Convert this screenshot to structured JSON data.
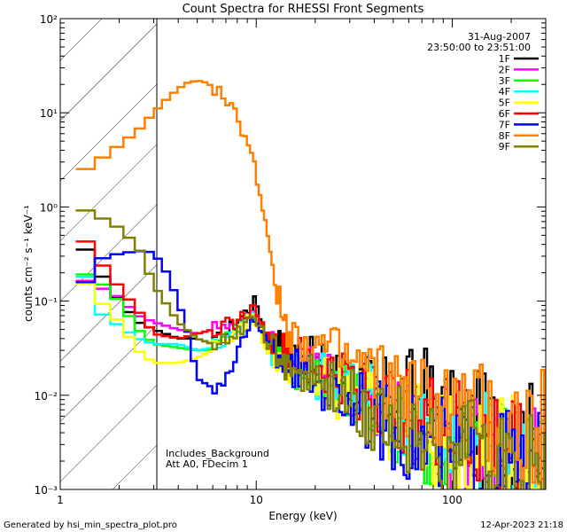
{
  "footer": {
    "generated_by": "Generated by hsi_min_spectra_plot.pro",
    "timestamp": "12-Apr-2023 21:18"
  },
  "annotations": {
    "date": "31-Aug-2007",
    "time_range": "23:50:00 to 23:51:00",
    "background_note": "Includes_Background",
    "attenuator_note": "Att A0, FDecim 1"
  },
  "chart_data": {
    "type": "line",
    "title": "Count Spectra for RHESSI Front Segments",
    "xlabel": "Energy (keV)",
    "ylabel": "counts cm⁻² s⁻¹ keV⁻¹",
    "x_scale": "log",
    "y_scale": "log",
    "xlim": [
      1,
      300
    ],
    "ylim": [
      0.001,
      100
    ],
    "x_ticks": [
      {
        "value": 1,
        "label": "1"
      },
      {
        "value": 10,
        "label": "10"
      },
      {
        "value": 100,
        "label": "100"
      }
    ],
    "y_ticks": [
      {
        "value": 0.001,
        "label": "10⁻³"
      },
      {
        "value": 0.01,
        "label": "10⁻²"
      },
      {
        "value": 0.1,
        "label": "10⁻¹"
      },
      {
        "value": 1,
        "label": "10⁰"
      },
      {
        "value": 10,
        "label": "10¹"
      },
      {
        "value": 100,
        "label": "10²"
      }
    ],
    "hatched_region": [
      1,
      3
    ],
    "legend_position": "top-right",
    "series": [
      {
        "name": "1F",
        "color": "#000000",
        "points": [
          [
            1.3,
            0.4
          ],
          [
            1.6,
            0.2
          ],
          [
            2,
            0.1
          ],
          [
            2.5,
            0.06
          ],
          [
            3,
            0.05
          ],
          [
            4,
            0.04
          ],
          [
            5,
            0.04
          ],
          [
            6,
            0.035
          ],
          [
            7,
            0.045
          ],
          [
            8,
            0.06
          ],
          [
            9,
            0.08
          ],
          [
            10,
            0.1
          ],
          [
            11,
            0.05
          ],
          [
            12,
            0.04
          ],
          [
            15,
            0.028
          ],
          [
            20,
            0.022
          ],
          [
            30,
            0.015
          ],
          [
            40,
            0.011
          ],
          [
            50,
            0.009
          ],
          [
            70,
            0.012
          ],
          [
            100,
            0.005
          ],
          [
            150,
            0.004
          ],
          [
            200,
            0.0032
          ],
          [
            280,
            0.0025
          ]
        ]
      },
      {
        "name": "2F",
        "color": "#ff00ff",
        "points": [
          [
            1.3,
            0.17
          ],
          [
            1.6,
            0.14
          ],
          [
            2,
            0.11
          ],
          [
            2.5,
            0.07
          ],
          [
            3,
            0.06
          ],
          [
            4,
            0.05
          ],
          [
            5,
            0.045
          ],
          [
            6,
            0.05
          ],
          [
            7,
            0.06
          ],
          [
            8,
            0.055
          ],
          [
            9,
            0.07
          ],
          [
            10,
            0.08
          ],
          [
            11,
            0.045
          ],
          [
            12,
            0.035
          ],
          [
            15,
            0.025
          ],
          [
            20,
            0.02
          ],
          [
            30,
            0.012
          ],
          [
            40,
            0.009
          ],
          [
            50,
            0.006
          ],
          [
            70,
            0.004
          ],
          [
            100,
            0.003
          ],
          [
            150,
            0.0022
          ],
          [
            200,
            0.0017
          ],
          [
            280,
            0.0014
          ]
        ]
      },
      {
        "name": "3F",
        "color": "#00ff00",
        "points": [
          [
            1.3,
            0.2
          ],
          [
            1.6,
            0.16
          ],
          [
            2,
            0.1
          ],
          [
            2.5,
            0.05
          ],
          [
            3,
            0.035
          ],
          [
            4,
            0.032
          ],
          [
            5,
            0.03
          ],
          [
            6,
            0.03
          ],
          [
            7,
            0.04
          ],
          [
            8,
            0.05
          ],
          [
            9,
            0.065
          ],
          [
            10,
            0.08
          ],
          [
            11,
            0.04
          ],
          [
            12,
            0.03
          ],
          [
            15,
            0.02
          ],
          [
            20,
            0.014
          ],
          [
            30,
            0.009
          ],
          [
            40,
            0.006
          ],
          [
            50,
            0.005
          ],
          [
            70,
            0.0035
          ],
          [
            100,
            0.0028
          ],
          [
            150,
            0.0021
          ],
          [
            200,
            0.0016
          ],
          [
            280,
            0.0013
          ]
        ]
      },
      {
        "name": "4F",
        "color": "#00ffff",
        "points": [
          [
            1.3,
            0.22
          ],
          [
            1.6,
            0.075
          ],
          [
            2,
            0.055
          ],
          [
            2.5,
            0.04
          ],
          [
            3,
            0.035
          ],
          [
            4,
            0.035
          ],
          [
            5,
            0.03
          ],
          [
            6,
            0.032
          ],
          [
            7,
            0.04
          ],
          [
            8,
            0.05
          ],
          [
            9,
            0.06
          ],
          [
            10,
            0.07
          ],
          [
            11,
            0.04
          ],
          [
            12,
            0.03
          ],
          [
            15,
            0.021
          ],
          [
            20,
            0.016
          ],
          [
            30,
            0.011
          ],
          [
            40,
            0.008
          ],
          [
            50,
            0.006
          ],
          [
            70,
            0.0045
          ],
          [
            100,
            0.0035
          ],
          [
            150,
            0.0028
          ],
          [
            200,
            0.0022
          ],
          [
            280,
            0.0018
          ]
        ]
      },
      {
        "name": "5F",
        "color": "#ffff00",
        "points": [
          [
            1.3,
            0.17
          ],
          [
            1.6,
            0.1
          ],
          [
            2,
            0.06
          ],
          [
            2.5,
            0.03
          ],
          [
            3,
            0.022
          ],
          [
            4,
            0.022
          ],
          [
            5,
            0.025
          ],
          [
            6,
            0.03
          ],
          [
            7,
            0.04
          ],
          [
            8,
            0.045
          ],
          [
            9,
            0.06
          ],
          [
            10,
            0.065
          ],
          [
            11,
            0.035
          ],
          [
            12,
            0.028
          ],
          [
            15,
            0.02
          ],
          [
            20,
            0.015
          ],
          [
            30,
            0.01
          ],
          [
            40,
            0.008
          ],
          [
            50,
            0.0055
          ],
          [
            70,
            0.0042
          ],
          [
            100,
            0.0032
          ],
          [
            150,
            0.0026
          ],
          [
            200,
            0.0021
          ],
          [
            280,
            0.0017
          ]
        ]
      },
      {
        "name": "6F",
        "color": "#ff0000",
        "points": [
          [
            1.3,
            0.48
          ],
          [
            1.6,
            0.26
          ],
          [
            2,
            0.14
          ],
          [
            2.5,
            0.08
          ],
          [
            3,
            0.045
          ],
          [
            4,
            0.04
          ],
          [
            5,
            0.045
          ],
          [
            6,
            0.05
          ],
          [
            7,
            0.055
          ],
          [
            8,
            0.06
          ],
          [
            9,
            0.075
          ],
          [
            10,
            0.085
          ],
          [
            11,
            0.045
          ],
          [
            12,
            0.035
          ],
          [
            15,
            0.026
          ],
          [
            20,
            0.02
          ],
          [
            30,
            0.014
          ],
          [
            40,
            0.01
          ],
          [
            50,
            0.007
          ],
          [
            70,
            0.0055
          ],
          [
            100,
            0.004
          ],
          [
            150,
            0.003
          ],
          [
            200,
            0.0024
          ],
          [
            280,
            0.002
          ]
        ]
      },
      {
        "name": "7F",
        "color": "#0000ff",
        "points": [
          [
            1.3,
            0.14
          ],
          [
            1.6,
            0.28
          ],
          [
            2,
            0.32
          ],
          [
            2.5,
            0.34
          ],
          [
            3,
            0.33
          ],
          [
            3.5,
            0.2
          ],
          [
            4,
            0.1
          ],
          [
            4.5,
            0.045
          ],
          [
            5,
            0.015
          ],
          [
            6,
            0.012
          ],
          [
            7,
            0.015
          ],
          [
            8,
            0.025
          ],
          [
            9,
            0.05
          ],
          [
            10,
            0.07
          ],
          [
            11,
            0.04
          ],
          [
            12,
            0.03
          ],
          [
            15,
            0.02
          ],
          [
            20,
            0.014
          ],
          [
            30,
            0.009
          ],
          [
            40,
            0.006
          ],
          [
            50,
            0.0045
          ],
          [
            70,
            0.0033
          ],
          [
            100,
            0.0025
          ],
          [
            150,
            0.002
          ],
          [
            200,
            0.0016
          ],
          [
            280,
            0.0013
          ]
        ]
      },
      {
        "name": "8F",
        "color": "#ff8000",
        "points": [
          [
            1.3,
            2.4
          ],
          [
            1.6,
            3.2
          ],
          [
            2,
            4.5
          ],
          [
            2.5,
            6.5
          ],
          [
            3,
            10
          ],
          [
            3.5,
            14
          ],
          [
            4,
            18
          ],
          [
            4.5,
            21
          ],
          [
            5,
            22
          ],
          [
            5.5,
            21
          ],
          [
            6,
            19
          ],
          [
            6.5,
            16
          ],
          [
            7,
            13
          ],
          [
            8,
            9
          ],
          [
            9,
            5
          ],
          [
            10,
            2.3
          ],
          [
            11,
            0.8
          ],
          [
            12,
            0.3
          ],
          [
            13,
            0.1
          ],
          [
            14,
            0.06
          ],
          [
            15,
            0.045
          ],
          [
            20,
            0.035
          ],
          [
            30,
            0.022
          ],
          [
            40,
            0.016
          ],
          [
            50,
            0.012
          ],
          [
            70,
            0.009
          ],
          [
            100,
            0.0065
          ],
          [
            150,
            0.005
          ],
          [
            200,
            0.004
          ],
          [
            280,
            0.0032
          ]
        ]
      },
      {
        "name": "9F",
        "color": "#808000",
        "points": [
          [
            1.3,
            0.95
          ],
          [
            1.6,
            0.78
          ],
          [
            2,
            0.6
          ],
          [
            2.5,
            0.38
          ],
          [
            3,
            0.15
          ],
          [
            4,
            0.06
          ],
          [
            5,
            0.04
          ],
          [
            6,
            0.035
          ],
          [
            7,
            0.04
          ],
          [
            8,
            0.045
          ],
          [
            9,
            0.06
          ],
          [
            10,
            0.07
          ],
          [
            11,
            0.04
          ],
          [
            12,
            0.03
          ],
          [
            15,
            0.02
          ],
          [
            20,
            0.014
          ],
          [
            30,
            0.009
          ],
          [
            40,
            0.0065
          ],
          [
            50,
            0.005
          ],
          [
            70,
            0.0035
          ],
          [
            100,
            0.0027
          ],
          [
            150,
            0.002
          ],
          [
            200,
            0.0016
          ],
          [
            280,
            0.0013
          ]
        ]
      }
    ]
  }
}
